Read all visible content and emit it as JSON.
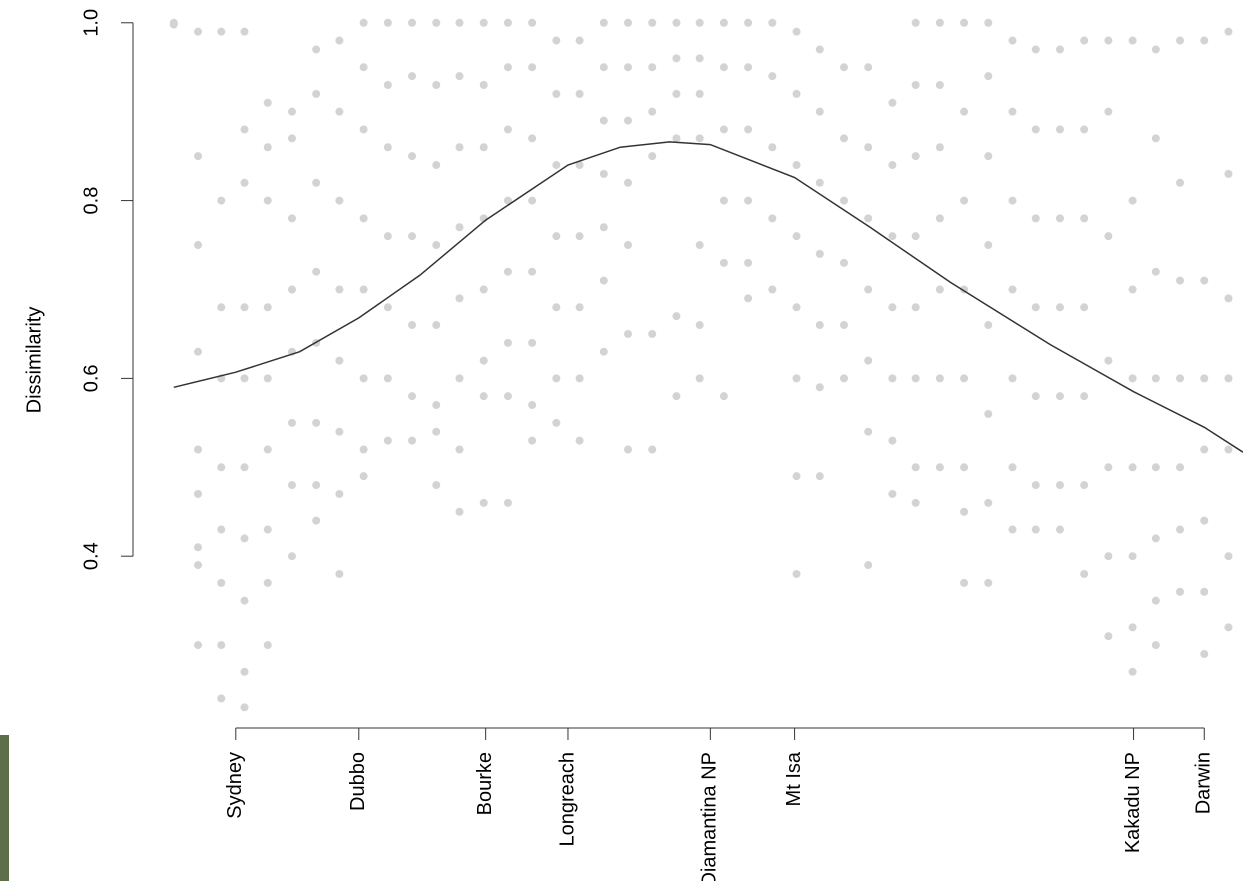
{
  "chart_data": {
    "type": "scatter",
    "y_label": "Dissimilarity",
    "xlim": [
      -7,
      104
    ],
    "ylim": [
      0.2,
      1.02
    ],
    "xticks": [
      {
        "value": 0,
        "label": "Sydney"
      },
      {
        "value": 12.7,
        "label": "Dubbo"
      },
      {
        "value": 25.8,
        "label": "Bourke"
      },
      {
        "value": 34.3,
        "label": "Longreach"
      },
      {
        "value": 49,
        "label": "Diamantina NP"
      },
      {
        "value": 57.7,
        "label": "Mt Isa"
      },
      {
        "value": 92.7,
        "label": "Kakadu NP"
      },
      {
        "value": 100,
        "label": "Darwin"
      }
    ],
    "yticks": [
      0.4,
      0.6,
      0.8,
      {
        "value": 1,
        "label": "1.0"
      }
    ],
    "series": [
      {
        "color": "#d3d3d3",
        "x": [
          -6.4,
          -6.4,
          -3.9,
          -3.9,
          -3.9,
          -3.9,
          -3.9,
          -3.9,
          -3.9,
          -3.9,
          -3.9,
          -1.5,
          -1.5,
          -1.5,
          -1.5,
          -1.5,
          -1.5,
          -1.5,
          -1.5,
          -1.5,
          0.9,
          0.9,
          0.9,
          0.9,
          0.9,
          0.9,
          0.9,
          0.9,
          0.9,
          0.9,
          3.3,
          3.3,
          3.3,
          3.3,
          3.3,
          3.3,
          3.3,
          3.3,
          3.3,
          5.8,
          5.8,
          5.8,
          5.8,
          5.8,
          5.8,
          5.8,
          5.8,
          8.3,
          8.3,
          8.3,
          8.3,
          8.3,
          8.3,
          8.3,
          8.3,
          10.7,
          10.7,
          10.7,
          10.7,
          10.7,
          10.7,
          10.7,
          10.7,
          13.2,
          13.2,
          13.2,
          13.2,
          13.2,
          13.2,
          13.2,
          13.2,
          15.7,
          15.7,
          15.7,
          15.7,
          15.7,
          15.7,
          15.7,
          18.2,
          18.2,
          18.2,
          18.2,
          18.2,
          18.2,
          18.2,
          20.7,
          20.7,
          20.7,
          20.7,
          20.7,
          20.7,
          20.7,
          20.7,
          23.1,
          23.1,
          23.1,
          23.1,
          23.1,
          23.1,
          23.1,
          23.1,
          25.6,
          25.6,
          25.6,
          25.6,
          25.6,
          25.6,
          25.6,
          25.6,
          28.1,
          28.1,
          28.1,
          28.1,
          28.1,
          28.1,
          28.1,
          28.1,
          30.6,
          30.6,
          30.6,
          30.6,
          30.6,
          30.6,
          30.6,
          30.6,
          33.1,
          33.1,
          33.1,
          33.1,
          33.1,
          33.1,
          33.1,
          35.5,
          35.5,
          35.5,
          35.5,
          35.5,
          35.5,
          35.5,
          38,
          38,
          38,
          38,
          38,
          38,
          38,
          40.5,
          40.5,
          40.5,
          40.5,
          40.5,
          40.5,
          40.5,
          43,
          43,
          43,
          43,
          43,
          43,
          45.5,
          45.5,
          45.5,
          45.5,
          45.5,
          45.5,
          47.9,
          47.9,
          47.9,
          47.9,
          47.9,
          47.9,
          47.9,
          50.4,
          50.4,
          50.4,
          50.4,
          50.4,
          50.4,
          52.9,
          52.9,
          52.9,
          52.9,
          52.9,
          52.9,
          55.4,
          55.4,
          55.4,
          55.4,
          55.4,
          57.9,
          57.9,
          57.9,
          57.9,
          57.9,
          57.9,
          57.9,
          57.9,
          60.3,
          60.3,
          60.3,
          60.3,
          60.3,
          60.3,
          60.3,
          62.8,
          62.8,
          62.8,
          62.8,
          62.8,
          62.8,
          65.3,
          65.3,
          65.3,
          65.3,
          65.3,
          65.3,
          65.3,
          67.8,
          67.8,
          67.8,
          67.8,
          67.8,
          67.8,
          67.8,
          70.2,
          70.2,
          70.2,
          70.2,
          70.2,
          70.2,
          70.2,
          70.2,
          72.7,
          72.7,
          72.7,
          72.7,
          72.7,
          72.7,
          72.7,
          75.2,
          75.2,
          75.2,
          75.2,
          75.2,
          75.2,
          75.2,
          75.2,
          77.7,
          77.7,
          77.7,
          77.7,
          77.7,
          77.7,
          77.7,
          77.7,
          80.2,
          80.2,
          80.2,
          80.2,
          80.2,
          80.2,
          80.2,
          82.6,
          82.6,
          82.6,
          82.6,
          82.6,
          82.6,
          82.6,
          85.1,
          85.1,
          85.1,
          85.1,
          85.1,
          85.1,
          85.1,
          87.6,
          87.6,
          87.6,
          87.6,
          87.6,
          87.6,
          87.6,
          90.1,
          90.1,
          90.1,
          90.1,
          90.1,
          90.1,
          90.1,
          92.6,
          92.6,
          92.6,
          92.6,
          92.6,
          92.6,
          92.6,
          92.6,
          95,
          95,
          95,
          95,
          95,
          95,
          95,
          95,
          97.5,
          97.5,
          97.5,
          97.5,
          97.5,
          97.5,
          97.5,
          100,
          100,
          100,
          100,
          100,
          100,
          100,
          102.5,
          102.5,
          102.5,
          102.5,
          102.5,
          102.5,
          102.5
        ],
        "values": [
          1.0,
          0.998,
          0.99,
          0.85,
          0.75,
          0.63,
          0.52,
          0.47,
          0.41,
          0.39,
          0.3,
          0.99,
          0.8,
          0.68,
          0.6,
          0.5,
          0.43,
          0.37,
          0.3,
          0.24,
          0.99,
          0.88,
          0.82,
          0.68,
          0.6,
          0.5,
          0.42,
          0.35,
          0.27,
          0.23,
          0.91,
          0.86,
          0.8,
          0.68,
          0.6,
          0.52,
          0.43,
          0.37,
          0.3,
          0.9,
          0.87,
          0.78,
          0.7,
          0.63,
          0.55,
          0.48,
          0.4,
          0.97,
          0.92,
          0.82,
          0.72,
          0.64,
          0.55,
          0.48,
          0.44,
          0.98,
          0.9,
          0.8,
          0.7,
          0.62,
          0.54,
          0.47,
          0.38,
          1.0,
          0.95,
          0.88,
          0.78,
          0.7,
          0.6,
          0.52,
          0.49,
          1.0,
          0.93,
          0.86,
          0.76,
          0.68,
          0.6,
          0.53,
          1.0,
          0.94,
          0.85,
          0.76,
          0.66,
          0.58,
          0.53,
          1.0,
          0.93,
          0.84,
          0.75,
          0.66,
          0.57,
          0.54,
          0.48,
          1.0,
          0.94,
          0.86,
          0.77,
          0.69,
          0.6,
          0.52,
          0.45,
          1.0,
          0.93,
          0.86,
          0.78,
          0.7,
          0.62,
          0.58,
          0.46,
          1.0,
          0.95,
          0.88,
          0.8,
          0.72,
          0.64,
          0.58,
          0.46,
          1.0,
          0.95,
          0.87,
          0.8,
          0.72,
          0.64,
          0.57,
          0.53,
          0.98,
          0.92,
          0.84,
          0.76,
          0.68,
          0.6,
          0.55,
          0.98,
          0.92,
          0.84,
          0.76,
          0.68,
          0.6,
          0.53,
          1.0,
          0.95,
          0.89,
          0.83,
          0.77,
          0.71,
          0.63,
          1.0,
          0.95,
          0.89,
          0.82,
          0.75,
          0.65,
          0.52,
          1.0,
          0.95,
          0.9,
          0.85,
          0.65,
          0.52,
          1.0,
          0.96,
          0.92,
          0.87,
          0.67,
          0.58,
          1.0,
          0.96,
          0.92,
          0.87,
          0.75,
          0.66,
          0.6,
          1.0,
          0.95,
          0.88,
          0.8,
          0.73,
          0.58,
          1.0,
          0.95,
          0.88,
          0.8,
          0.73,
          0.69,
          1.0,
          0.94,
          0.86,
          0.78,
          0.7,
          0.99,
          0.92,
          0.84,
          0.76,
          0.68,
          0.6,
          0.49,
          0.38,
          0.97,
          0.9,
          0.82,
          0.74,
          0.66,
          0.59,
          0.49,
          0.95,
          0.87,
          0.8,
          0.73,
          0.66,
          0.6,
          0.95,
          0.86,
          0.78,
          0.7,
          0.62,
          0.54,
          0.39,
          0.91,
          0.84,
          0.76,
          0.68,
          0.6,
          0.53,
          0.47,
          1.0,
          0.93,
          0.85,
          0.76,
          0.68,
          0.6,
          0.5,
          0.46,
          1.0,
          0.93,
          0.86,
          0.78,
          0.7,
          0.6,
          0.5,
          1.0,
          0.9,
          0.8,
          0.7,
          0.6,
          0.5,
          0.45,
          0.37,
          1.0,
          0.94,
          0.85,
          0.75,
          0.66,
          0.56,
          0.46,
          0.37,
          0.98,
          0.9,
          0.8,
          0.7,
          0.6,
          0.5,
          0.43,
          0.97,
          0.88,
          0.78,
          0.68,
          0.58,
          0.48,
          0.43,
          0.97,
          0.88,
          0.78,
          0.68,
          0.58,
          0.48,
          0.43,
          0.98,
          0.88,
          0.78,
          0.68,
          0.58,
          0.48,
          0.38,
          0.98,
          0.9,
          0.76,
          0.62,
          0.5,
          0.4,
          0.31,
          0.98,
          0.8,
          0.7,
          0.6,
          0.5,
          0.4,
          0.32,
          0.27,
          0.97,
          0.87,
          0.72,
          0.6,
          0.5,
          0.42,
          0.35,
          0.3,
          0.98,
          0.82,
          0.71,
          0.6,
          0.5,
          0.43,
          0.36,
          0.98,
          0.71,
          0.6,
          0.52,
          0.44,
          0.36,
          0.29,
          0.99,
          0.83,
          0.69,
          0.6,
          0.52,
          0.4,
          0.32
        ]
      }
    ],
    "curve": {
      "color": "#333333",
      "x": [
        -6.4,
        0,
        6.6,
        12.7,
        19,
        25.8,
        34.3,
        39.7,
        44.8,
        49,
        57.7,
        65.5,
        73.8,
        84.1,
        92.7,
        100,
        104
      ],
      "values": [
        0.59,
        0.607,
        0.63,
        0.668,
        0.716,
        0.778,
        0.84,
        0.86,
        0.866,
        0.863,
        0.826,
        0.77,
        0.708,
        0.638,
        0.585,
        0.545,
        0.517
      ]
    }
  }
}
